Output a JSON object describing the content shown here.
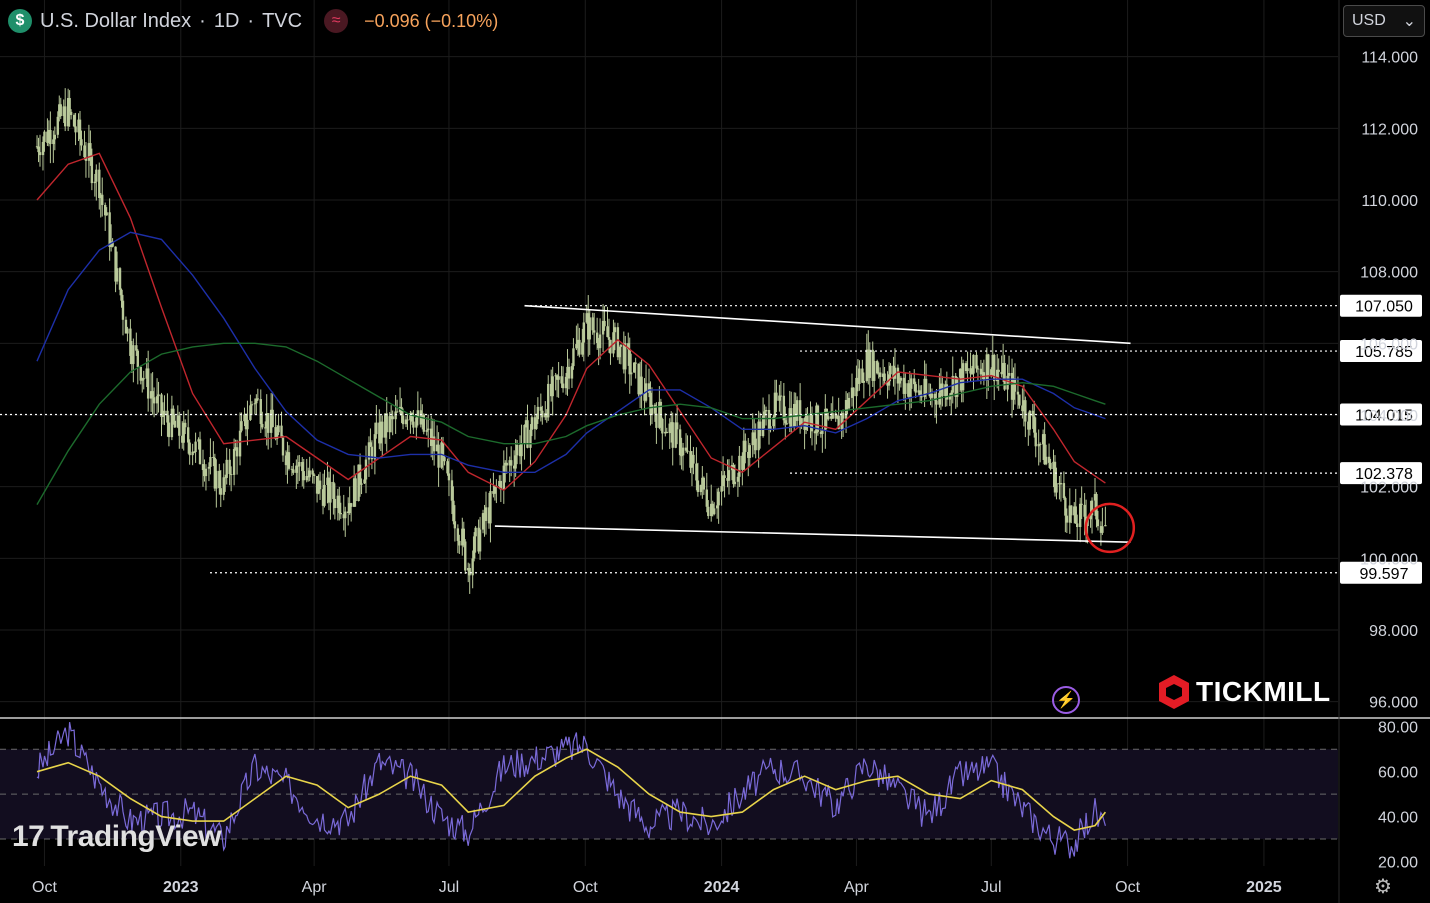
{
  "header": {
    "symbol_icon": "$",
    "title": "U.S. Dollar Index",
    "interval": "1D",
    "source": "TVC",
    "flag_icon": "≈",
    "change": "−0.096 (−0.10%)"
  },
  "currency_select": {
    "value": "USD",
    "icon": "chevron-down-icon"
  },
  "watermarks": {
    "tradingview": "TradingView",
    "tradingview_mark": "17",
    "broker": "TICKMILL"
  },
  "colors": {
    "background": "#000000",
    "candle": "#b9c99a",
    "ma_fast": "#c0262d",
    "ma_mid": "#1d2fa8",
    "ma_slow": "#1c6a2c",
    "rsi": "#7a6ad8",
    "rsi_ma": "#e8d44a",
    "trendline": "#ffffff",
    "marker_circle": "#e02020"
  },
  "chart_data": [
    {
      "type": "line",
      "panel": "price",
      "y_axis_ticks": [
        "96.000",
        "98.000",
        "100.000",
        "102.000",
        "104.000",
        "106.000",
        "108.000",
        "110.000",
        "112.000",
        "114.000"
      ],
      "x_axis_ticks": [
        "Oct",
        "2023",
        "Apr",
        "Jul",
        "Oct",
        "2024",
        "Apr",
        "Jul",
        "Oct",
        "2025"
      ],
      "ylim": [
        95.6,
        114.8
      ],
      "price_labels": [
        "107.050",
        "105.785",
        "104.015",
        "102.378",
        "99.597"
      ],
      "price_levels": [
        107.05,
        105.785,
        104.015,
        102.378,
        99.597
      ],
      "x": [
        "2022-09-26",
        "2022-10-17",
        "2022-11-07",
        "2022-11-28",
        "2022-12-19",
        "2023-01-09",
        "2023-01-30",
        "2023-02-20",
        "2023-03-13",
        "2023-04-03",
        "2023-04-24",
        "2023-05-15",
        "2023-06-05",
        "2023-06-26",
        "2023-07-14",
        "2023-08-07",
        "2023-08-28",
        "2023-09-18",
        "2023-10-02",
        "2023-10-23",
        "2023-11-13",
        "2023-12-04",
        "2023-12-25",
        "2024-01-15",
        "2024-02-05",
        "2024-02-26",
        "2024-03-18",
        "2024-04-08",
        "2024-04-29",
        "2024-05-20",
        "2024-06-10",
        "2024-07-01",
        "2024-07-22",
        "2024-08-12",
        "2024-08-26",
        "2024-09-09",
        "2024-09-16"
      ],
      "series": [
        {
          "name": "",
          "values": [
            111.5,
            112.5,
            110.5,
            106.0,
            104.0,
            103.2,
            102.0,
            104.5,
            103.0,
            102.0,
            101.5,
            103.5,
            104.2,
            102.8,
            99.8,
            102.4,
            103.8,
            105.2,
            106.5,
            106.0,
            104.4,
            103.2,
            101.5,
            102.8,
            104.2,
            104.0,
            103.6,
            105.5,
            105.0,
            104.5,
            105.0,
            105.5,
            104.4,
            102.4,
            101.0,
            101.4,
            100.9
          ]
        },
        {
          "name": "",
          "values": [
            110.0,
            111.0,
            111.3,
            109.5,
            107.0,
            104.6,
            103.2,
            103.3,
            103.4,
            102.8,
            102.2,
            102.8,
            103.4,
            103.3,
            102.4,
            101.9,
            102.7,
            104.0,
            105.3,
            106.1,
            105.4,
            104.1,
            102.8,
            102.4,
            103.1,
            103.8,
            103.6,
            104.4,
            105.2,
            105.1,
            105.0,
            105.1,
            104.8,
            103.6,
            102.7,
            102.3,
            102.1
          ]
        },
        {
          "name": "",
          "values": [
            105.5,
            107.5,
            108.6,
            109.1,
            108.9,
            107.9,
            106.7,
            105.3,
            104.1,
            103.3,
            102.9,
            102.8,
            102.9,
            102.9,
            102.6,
            102.4,
            102.4,
            102.9,
            103.5,
            104.1,
            104.7,
            104.7,
            104.2,
            103.6,
            103.6,
            103.7,
            103.5,
            103.9,
            104.4,
            104.6,
            104.9,
            105.0,
            105.0,
            104.6,
            104.2,
            104.0,
            103.9
          ]
        },
        {
          "name": "",
          "values": [
            101.5,
            103.0,
            104.3,
            105.2,
            105.7,
            105.9,
            106.0,
            106.0,
            105.9,
            105.5,
            105.0,
            104.5,
            104.0,
            103.8,
            103.4,
            103.2,
            103.2,
            103.4,
            103.7,
            104.0,
            104.2,
            104.3,
            104.2,
            103.9,
            103.9,
            104.0,
            104.1,
            104.2,
            104.3,
            104.4,
            104.6,
            104.8,
            104.9,
            104.8,
            104.6,
            104.4,
            104.3
          ]
        }
      ],
      "trendlines": [
        {
          "from": [
            "2023-08-21",
            107.05
          ],
          "to": [
            "2024-10-03",
            106.0
          ]
        },
        {
          "from": [
            "2023-08-01",
            100.9
          ],
          "to": [
            "2024-10-03",
            100.45
          ]
        }
      ],
      "marker": {
        "x": "2024-09-19",
        "y": 100.85
      }
    },
    {
      "type": "line",
      "panel": "rsi",
      "y_axis_ticks": [
        "20.00",
        "40.00",
        "60.00",
        "80.00"
      ],
      "ylim": [
        18,
        83
      ],
      "bands": [
        30,
        50,
        70
      ],
      "x": [
        "2022-09-26",
        "2022-10-17",
        "2022-11-07",
        "2022-11-28",
        "2022-12-19",
        "2023-01-09",
        "2023-01-30",
        "2023-02-20",
        "2023-03-13",
        "2023-04-03",
        "2023-04-24",
        "2023-05-15",
        "2023-06-05",
        "2023-06-26",
        "2023-07-14",
        "2023-08-07",
        "2023-08-28",
        "2023-09-18",
        "2023-10-02",
        "2023-10-23",
        "2023-11-13",
        "2023-12-04",
        "2023-12-25",
        "2024-01-15",
        "2024-02-05",
        "2024-02-26",
        "2024-03-18",
        "2024-04-08",
        "2024-04-29",
        "2024-05-20",
        "2024-06-10",
        "2024-07-01",
        "2024-07-22",
        "2024-08-12",
        "2024-08-26",
        "2024-09-09",
        "2024-09-16"
      ],
      "series": [
        {
          "name": "",
          "values": [
            60,
            78,
            55,
            38,
            40,
            42,
            30,
            62,
            55,
            40,
            38,
            64,
            58,
            40,
            33,
            62,
            66,
            70,
            72,
            50,
            36,
            42,
            36,
            50,
            62,
            58,
            45,
            64,
            52,
            40,
            58,
            62,
            44,
            30,
            28,
            42,
            36
          ]
        },
        {
          "name": "",
          "values": [
            60,
            64,
            58,
            48,
            40,
            38,
            38,
            48,
            58,
            54,
            44,
            50,
            58,
            54,
            42,
            45,
            58,
            66,
            70,
            62,
            50,
            42,
            40,
            42,
            52,
            58,
            52,
            56,
            58,
            50,
            48,
            56,
            52,
            40,
            34,
            36,
            42
          ]
        }
      ]
    }
  ]
}
